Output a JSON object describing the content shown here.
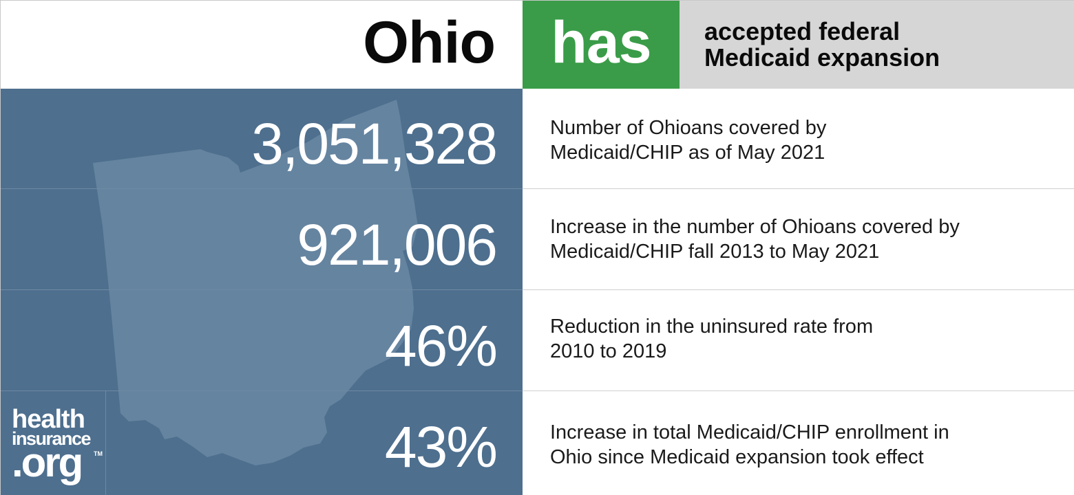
{
  "header": {
    "state": "Ohio",
    "status": "has",
    "description_line1": "accepted federal",
    "description_line2": "Medicaid expansion"
  },
  "colors": {
    "status_green": "#3a9c48",
    "panel_blue": "#4e6f8e",
    "map_fill": "#6584a0",
    "header_gray": "#d6d6d6"
  },
  "stats": [
    {
      "value": "3,051,328",
      "line1": "Number of Ohioans covered by",
      "line2": "Medicaid/CHIP as of May 2021"
    },
    {
      "value": "921,006",
      "line1": "Increase in the number of Ohioans covered by",
      "line2": "Medicaid/CHIP fall 2013 to May 2021"
    },
    {
      "value": "46%",
      "line1": "Reduction in the uninsured rate from",
      "line2": "2010 to 2019"
    },
    {
      "value": "43%",
      "line1": "Increase in total Medicaid/CHIP enrollment in",
      "line2": "Ohio since Medicaid expansion took effect"
    }
  ],
  "logo": {
    "line1": "health",
    "line2": "insurance",
    "line3": ".org",
    "trademark": "TM"
  },
  "map_icon": "ohio-state-outline-icon"
}
